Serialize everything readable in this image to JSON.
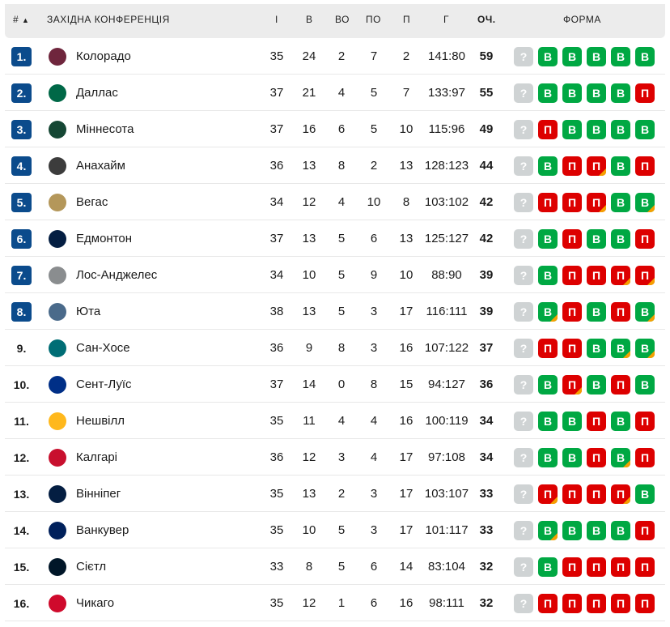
{
  "header": {
    "rank": "#",
    "sort_icon": "triangle-up",
    "conference": "ЗАХІДНА КОНФЕРЕНЦІЯ",
    "gp": "І",
    "w": "В",
    "otw": "ВО",
    "otl": "ПО",
    "l": "П",
    "goals": "Г",
    "pts": "ОЧ.",
    "form": "ФОРМА"
  },
  "colors": {
    "rank_badge": "#0b4b8c",
    "win": "#00a843",
    "loss": "#dd0000",
    "overtime_marker": "#f5a000",
    "upcoming": "#cfd3d4"
  },
  "rows": [
    {
      "rank": "1.",
      "team": "Колорадо",
      "logo": "#6f263d",
      "gp": "35",
      "w": "24",
      "otw": "2",
      "otl": "7",
      "l": "2",
      "goals": "141:80",
      "pts": "59",
      "form": [
        [
          "В",
          0
        ],
        [
          "В",
          0
        ],
        [
          "В",
          0
        ],
        [
          "В",
          0
        ],
        [
          "В",
          0
        ]
      ]
    },
    {
      "rank": "2.",
      "team": "Даллас",
      "logo": "#006847",
      "gp": "37",
      "w": "21",
      "otw": "4",
      "otl": "5",
      "l": "7",
      "goals": "133:97",
      "pts": "55",
      "form": [
        [
          "В",
          0
        ],
        [
          "В",
          0
        ],
        [
          "В",
          0
        ],
        [
          "В",
          0
        ],
        [
          "П",
          0
        ]
      ]
    },
    {
      "rank": "3.",
      "team": "Міннесота",
      "logo": "#154734",
      "gp": "37",
      "w": "16",
      "otw": "6",
      "otl": "5",
      "l": "10",
      "goals": "115:96",
      "pts": "49",
      "form": [
        [
          "П",
          0
        ],
        [
          "В",
          0
        ],
        [
          "В",
          0
        ],
        [
          "В",
          0
        ],
        [
          "В",
          0
        ]
      ]
    },
    {
      "rank": "4.",
      "team": "Анахайм",
      "logo": "#3c3c3c",
      "gp": "36",
      "w": "13",
      "otw": "8",
      "otl": "2",
      "l": "13",
      "goals": "128:123",
      "pts": "44",
      "form": [
        [
          "В",
          0
        ],
        [
          "П",
          0
        ],
        [
          "П",
          1
        ],
        [
          "В",
          0
        ],
        [
          "П",
          0
        ]
      ]
    },
    {
      "rank": "5.",
      "team": "Вегас",
      "logo": "#b4975a",
      "gp": "34",
      "w": "12",
      "otw": "4",
      "otl": "10",
      "l": "8",
      "goals": "103:102",
      "pts": "42",
      "form": [
        [
          "П",
          0
        ],
        [
          "П",
          0
        ],
        [
          "П",
          1
        ],
        [
          "В",
          0
        ],
        [
          "В",
          1
        ]
      ]
    },
    {
      "rank": "6.",
      "team": "Едмонтон",
      "logo": "#041e42",
      "gp": "37",
      "w": "13",
      "otw": "5",
      "otl": "6",
      "l": "13",
      "goals": "125:127",
      "pts": "42",
      "form": [
        [
          "В",
          0
        ],
        [
          "П",
          0
        ],
        [
          "В",
          0
        ],
        [
          "В",
          0
        ],
        [
          "П",
          0
        ]
      ]
    },
    {
      "rank": "7.",
      "team": "Лос-Анджелес",
      "logo": "#8a8d8f",
      "gp": "34",
      "w": "10",
      "otw": "5",
      "otl": "9",
      "l": "10",
      "goals": "88:90",
      "pts": "39",
      "form": [
        [
          "В",
          0
        ],
        [
          "П",
          0
        ],
        [
          "П",
          0
        ],
        [
          "П",
          1
        ],
        [
          "П",
          1
        ]
      ]
    },
    {
      "rank": "8.",
      "team": "Юта",
      "logo": "#4a6a8a",
      "gp": "38",
      "w": "13",
      "otw": "5",
      "otl": "3",
      "l": "17",
      "goals": "116:111",
      "pts": "39",
      "form": [
        [
          "В",
          1
        ],
        [
          "П",
          0
        ],
        [
          "В",
          0
        ],
        [
          "П",
          0
        ],
        [
          "В",
          1
        ]
      ]
    },
    {
      "rank": "9.",
      "team": "Сан-Хосе",
      "logo": "#006d75",
      "gp": "36",
      "w": "9",
      "otw": "8",
      "otl": "3",
      "l": "16",
      "goals": "107:122",
      "pts": "37",
      "form": [
        [
          "П",
          0
        ],
        [
          "П",
          0
        ],
        [
          "В",
          0
        ],
        [
          "В",
          1
        ],
        [
          "В",
          1
        ]
      ]
    },
    {
      "rank": "10.",
      "team": "Сент-Луїс",
      "logo": "#002f87",
      "gp": "37",
      "w": "14",
      "otw": "0",
      "otl": "8",
      "l": "15",
      "goals": "94:127",
      "pts": "36",
      "form": [
        [
          "В",
          0
        ],
        [
          "П",
          1
        ],
        [
          "В",
          0
        ],
        [
          "П",
          0
        ],
        [
          "В",
          0
        ]
      ]
    },
    {
      "rank": "11.",
      "team": "Нешвілл",
      "logo": "#ffb81c",
      "gp": "35",
      "w": "11",
      "otw": "4",
      "otl": "4",
      "l": "16",
      "goals": "100:119",
      "pts": "34",
      "form": [
        [
          "В",
          0
        ],
        [
          "В",
          0
        ],
        [
          "П",
          0
        ],
        [
          "В",
          0
        ],
        [
          "П",
          0
        ]
      ]
    },
    {
      "rank": "12.",
      "team": "Калгарі",
      "logo": "#c8102e",
      "gp": "36",
      "w": "12",
      "otw": "3",
      "otl": "4",
      "l": "17",
      "goals": "97:108",
      "pts": "34",
      "form": [
        [
          "В",
          0
        ],
        [
          "В",
          0
        ],
        [
          "П",
          0
        ],
        [
          "В",
          1
        ],
        [
          "П",
          0
        ]
      ]
    },
    {
      "rank": "13.",
      "team": "Вінніпег",
      "logo": "#041e42",
      "gp": "35",
      "w": "13",
      "otw": "2",
      "otl": "3",
      "l": "17",
      "goals": "103:107",
      "pts": "33",
      "form": [
        [
          "П",
          1
        ],
        [
          "П",
          0
        ],
        [
          "П",
          0
        ],
        [
          "П",
          1
        ],
        [
          "В",
          0
        ]
      ]
    },
    {
      "rank": "14.",
      "team": "Ванкувер",
      "logo": "#00205b",
      "gp": "35",
      "w": "10",
      "otw": "5",
      "otl": "3",
      "l": "17",
      "goals": "101:117",
      "pts": "33",
      "form": [
        [
          "В",
          1
        ],
        [
          "В",
          0
        ],
        [
          "В",
          0
        ],
        [
          "В",
          0
        ],
        [
          "П",
          0
        ]
      ]
    },
    {
      "rank": "15.",
      "team": "Сієтл",
      "logo": "#001628",
      "gp": "33",
      "w": "8",
      "otw": "5",
      "otl": "6",
      "l": "14",
      "goals": "83:104",
      "pts": "32",
      "form": [
        [
          "В",
          0
        ],
        [
          "П",
          0
        ],
        [
          "П",
          0
        ],
        [
          "П",
          0
        ],
        [
          "П",
          0
        ]
      ]
    },
    {
      "rank": "16.",
      "team": "Чикаго",
      "logo": "#cf0a2c",
      "gp": "35",
      "w": "12",
      "otw": "1",
      "otl": "6",
      "l": "16",
      "goals": "98:111",
      "pts": "32",
      "form": [
        [
          "П",
          0
        ],
        [
          "П",
          0
        ],
        [
          "П",
          0
        ],
        [
          "П",
          0
        ],
        [
          "П",
          0
        ]
      ]
    }
  ],
  "upcoming_label": "?"
}
